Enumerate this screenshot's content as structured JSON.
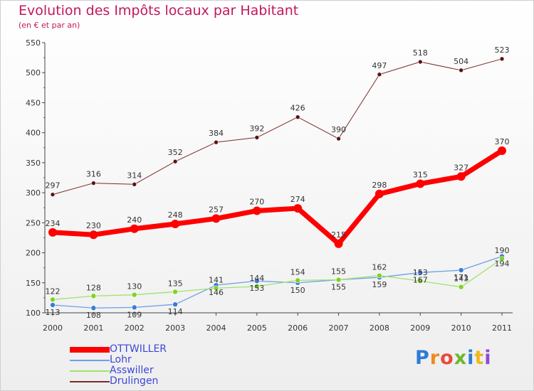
{
  "header": {
    "title": "Evolution des Impôts locaux par Habitant",
    "subtitle": "(en € et par an)"
  },
  "logo": {
    "letters": [
      "P",
      "r",
      "o",
      "x",
      "i",
      "t",
      "i"
    ]
  },
  "chart_data": {
    "type": "line",
    "title": "Evolution des Impôts locaux par Habitant",
    "subtitle": "(en € et par an)",
    "x": [
      "2000",
      "2001",
      "2002",
      "2003",
      "2004",
      "2005",
      "2006",
      "2007",
      "2008",
      "2009",
      "2010",
      "2011"
    ],
    "ylim": [
      100,
      550
    ],
    "yticks": [
      "100",
      "150",
      "200",
      "250",
      "300",
      "350",
      "400",
      "450",
      "500",
      "550"
    ],
    "grid": false,
    "legend": "bottom-left",
    "series": [
      {
        "name": "OTTWILLER",
        "color": "#ff0000",
        "values": [
          234,
          230,
          240,
          248,
          257,
          270,
          274,
          215,
          298,
          315,
          327,
          370
        ]
      },
      {
        "name": "Lohr",
        "color": "#6d9eeb",
        "values": [
          113,
          108,
          109,
          114,
          146,
          153,
          150,
          155,
          159,
          167,
          171,
          194
        ]
      },
      {
        "name": "Asswiller",
        "color": "#9ee36b",
        "values": [
          122,
          128,
          130,
          135,
          141,
          144,
          154,
          155,
          162,
          153,
          143,
          190
        ]
      },
      {
        "name": "Drulingen",
        "color": "#7b2b2b",
        "values": [
          297,
          316,
          314,
          352,
          384,
          392,
          426,
          390,
          497,
          518,
          504,
          523
        ]
      }
    ]
  }
}
